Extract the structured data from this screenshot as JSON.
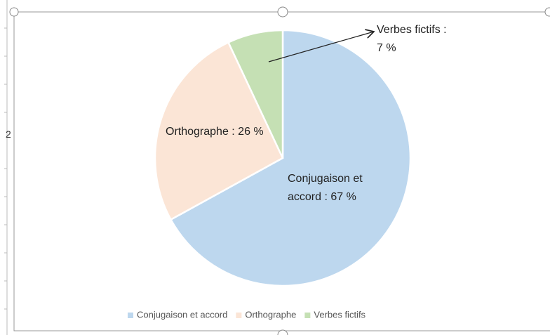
{
  "row_label": "2",
  "chart_data": {
    "type": "pie",
    "categories": [
      "Conjugaison et accord",
      "Orthographe",
      "Verbes fictifs"
    ],
    "values": [
      67,
      26,
      7
    ],
    "value_labels": [
      "Conjugaison et accord : 67 %",
      "Orthographe : 26 %",
      "Verbes fictifs : 7 %"
    ],
    "colors": [
      "#bdd7ee",
      "#fbe5d6",
      "#c5e0b4"
    ],
    "legend": "bottom"
  }
}
